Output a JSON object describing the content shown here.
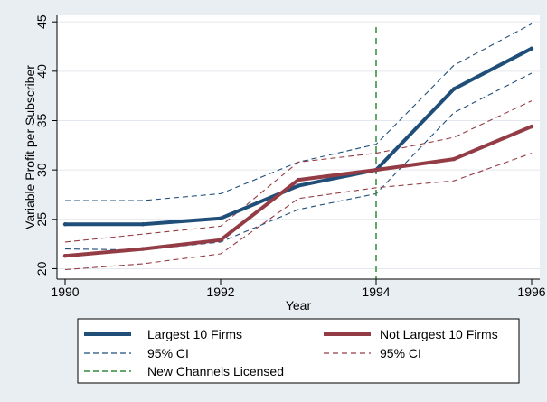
{
  "chart_data": {
    "type": "line",
    "title": "",
    "xlabel": "Year",
    "ylabel": "Variable Profit per Subscriber",
    "x": [
      1990,
      1991,
      1992,
      1993,
      1994,
      1995,
      1996
    ],
    "xlim": [
      1990,
      1996
    ],
    "ylim": [
      19.4,
      45.2
    ],
    "xticks": [
      1990,
      1992,
      1994,
      1996
    ],
    "yticks": [
      20,
      25,
      30,
      35,
      40,
      45
    ],
    "grid": "horizontal",
    "legend_position": "bottom",
    "series": [
      {
        "name": "Largest 10 Firms",
        "values": [
          24.5,
          24.5,
          25.1,
          28.4,
          30.0,
          38.2,
          42.3
        ],
        "color": "#1f4e79",
        "style": "solid"
      },
      {
        "name": "Not Largest 10 Firms",
        "values": [
          21.3,
          22.0,
          22.9,
          29.0,
          30.0,
          31.1,
          34.4
        ],
        "color": "#943c45",
        "style": "solid"
      },
      {
        "name": "95% CI",
        "ci_of": "Largest 10 Firms",
        "upper": [
          26.9,
          26.9,
          27.6,
          30.8,
          32.6,
          40.6,
          44.8
        ],
        "lower": [
          22.0,
          21.9,
          22.7,
          26.0,
          27.6,
          35.8,
          39.8
        ],
        "color": "#1f4e79",
        "style": "dashed"
      },
      {
        "name": "95% CI",
        "ci_of": "Not Largest 10 Firms",
        "upper": [
          22.7,
          23.5,
          24.3,
          30.8,
          31.7,
          33.3,
          37.0
        ],
        "lower": [
          19.9,
          20.5,
          21.5,
          27.1,
          28.2,
          28.9,
          31.7
        ],
        "color": "#943c45",
        "style": "dashed"
      }
    ],
    "vline": {
      "name": "New Channels Licensed",
      "x": 1994,
      "color": "#2e8b3a",
      "style": "dashed"
    }
  }
}
